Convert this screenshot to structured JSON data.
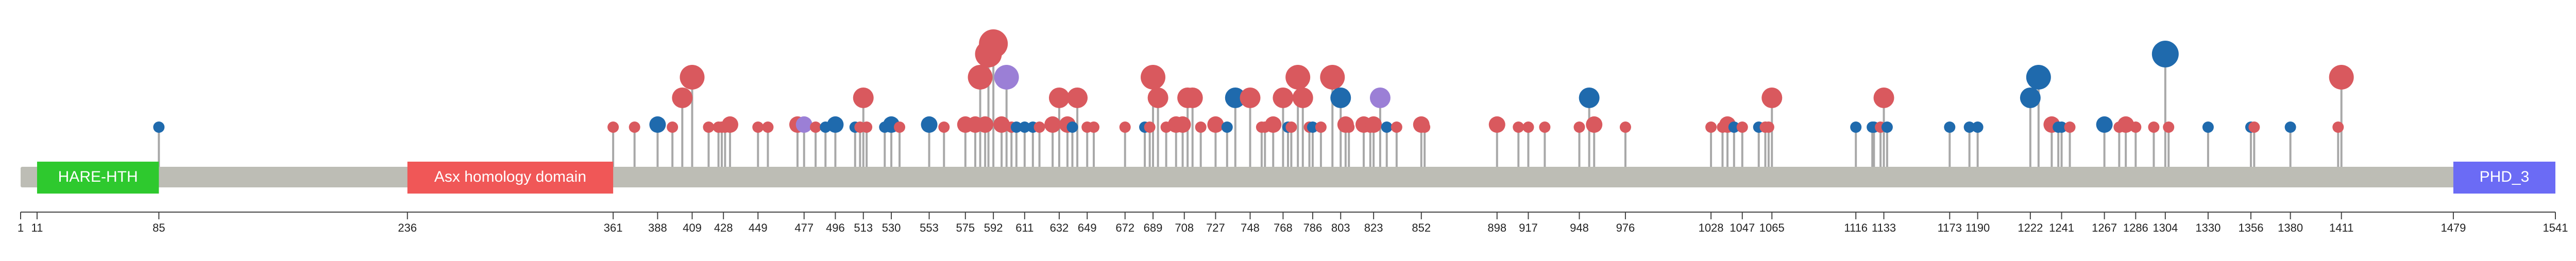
{
  "chart_data": {
    "type": "lollipop",
    "x_range": [
      1,
      1541
    ],
    "colors": {
      "backbone": "#bdbdb5",
      "stem": "#a8a8a8",
      "axis": "#444444",
      "missense": "#d9595e",
      "truncating": "#1f6aad",
      "other": "#9b7fd6"
    },
    "domains": [
      {
        "label": "HARE-HTH",
        "start": 11,
        "end": 85,
        "color": "#2ec92e"
      },
      {
        "label": "Asx homology domain",
        "start": 236,
        "end": 361,
        "color": "#f05757"
      },
      {
        "label": "PHD_3",
        "start": 1479,
        "end": 1541,
        "color": "#6b6bf5"
      }
    ],
    "ticks": [
      1,
      11,
      85,
      236,
      361,
      388,
      409,
      428,
      449,
      477,
      496,
      513,
      530,
      553,
      575,
      592,
      611,
      632,
      649,
      672,
      689,
      708,
      727,
      748,
      768,
      786,
      803,
      823,
      852,
      898,
      917,
      948,
      976,
      1028,
      1047,
      1065,
      1116,
      1133,
      1173,
      1190,
      1222,
      1241,
      1267,
      1286,
      1304,
      1330,
      1356,
      1380,
      1411,
      1479,
      1541
    ],
    "tick_labels": [
      "1",
      "11",
      "85",
      "236",
      "361",
      "388",
      "409",
      "428",
      "449",
      "477",
      "496",
      "513",
      "530",
      "553",
      "575",
      "592",
      "611",
      "632",
      "649",
      "672",
      "689",
      "708",
      "727",
      "748",
      "768",
      "786",
      "803",
      "823",
      "852",
      "898",
      "917",
      "948",
      "976",
      "1028",
      "1047",
      "1065",
      "1116",
      "1133",
      "1173",
      "1190",
      "1222",
      "1241",
      "1267",
      "1286",
      "1304",
      "1330",
      "1356",
      "1380",
      "1411",
      "1479",
      "1541"
    ],
    "lollipops": [
      {
        "pos": 85,
        "count": 1,
        "type": "truncating"
      },
      {
        "pos": 361,
        "count": 1,
        "type": "missense"
      },
      {
        "pos": 374,
        "count": 1,
        "type": "missense"
      },
      {
        "pos": 388,
        "count": 2,
        "type": "truncating"
      },
      {
        "pos": 397,
        "count": 1,
        "type": "missense"
      },
      {
        "pos": 403,
        "count": 3,
        "type": "missense"
      },
      {
        "pos": 409,
        "count": 4,
        "type": "missense"
      },
      {
        "pos": 419,
        "count": 1,
        "type": "missense"
      },
      {
        "pos": 425,
        "count": 1,
        "type": "missense"
      },
      {
        "pos": 427,
        "count": 1,
        "type": "missense"
      },
      {
        "pos": 429,
        "count": 1,
        "type": "missense"
      },
      {
        "pos": 432,
        "count": 2,
        "type": "missense"
      },
      {
        "pos": 449,
        "count": 1,
        "type": "missense"
      },
      {
        "pos": 455,
        "count": 1,
        "type": "missense"
      },
      {
        "pos": 473,
        "count": 2,
        "type": "missense"
      },
      {
        "pos": 477,
        "count": 2,
        "type": "other"
      },
      {
        "pos": 484,
        "count": 1,
        "type": "missense"
      },
      {
        "pos": 490,
        "count": 1,
        "type": "truncating"
      },
      {
        "pos": 496,
        "count": 2,
        "type": "truncating"
      },
      {
        "pos": 508,
        "count": 1,
        "type": "truncating"
      },
      {
        "pos": 511,
        "count": 1,
        "type": "missense"
      },
      {
        "pos": 513,
        "count": 3,
        "type": "missense"
      },
      {
        "pos": 515,
        "count": 1,
        "type": "missense"
      },
      {
        "pos": 526,
        "count": 1,
        "type": "truncating"
      },
      {
        "pos": 530,
        "count": 2,
        "type": "truncating"
      },
      {
        "pos": 535,
        "count": 1,
        "type": "missense"
      },
      {
        "pos": 553,
        "count": 2,
        "type": "truncating"
      },
      {
        "pos": 562,
        "count": 1,
        "type": "missense"
      },
      {
        "pos": 575,
        "count": 2,
        "type": "missense"
      },
      {
        "pos": 581,
        "count": 2,
        "type": "missense"
      },
      {
        "pos": 584,
        "count": 4,
        "type": "missense"
      },
      {
        "pos": 587,
        "count": 2,
        "type": "missense"
      },
      {
        "pos": 589,
        "count": 5,
        "type": "missense"
      },
      {
        "pos": 592,
        "count": 6,
        "type": "missense"
      },
      {
        "pos": 597,
        "count": 2,
        "type": "missense"
      },
      {
        "pos": 600,
        "count": 4,
        "type": "other"
      },
      {
        "pos": 603,
        "count": 1,
        "type": "missense"
      },
      {
        "pos": 606,
        "count": 1,
        "type": "truncating"
      },
      {
        "pos": 611,
        "count": 1,
        "type": "truncating"
      },
      {
        "pos": 616,
        "count": 1,
        "type": "truncating"
      },
      {
        "pos": 620,
        "count": 1,
        "type": "missense"
      },
      {
        "pos": 628,
        "count": 2,
        "type": "missense"
      },
      {
        "pos": 632,
        "count": 3,
        "type": "missense"
      },
      {
        "pos": 637,
        "count": 2,
        "type": "missense"
      },
      {
        "pos": 640,
        "count": 1,
        "type": "truncating"
      },
      {
        "pos": 643,
        "count": 3,
        "type": "missense"
      },
      {
        "pos": 649,
        "count": 1,
        "type": "missense"
      },
      {
        "pos": 653,
        "count": 1,
        "type": "missense"
      },
      {
        "pos": 672,
        "count": 1,
        "type": "missense"
      },
      {
        "pos": 684,
        "count": 1,
        "type": "truncating"
      },
      {
        "pos": 687,
        "count": 1,
        "type": "missense"
      },
      {
        "pos": 689,
        "count": 4,
        "type": "missense"
      },
      {
        "pos": 692,
        "count": 3,
        "type": "missense"
      },
      {
        "pos": 697,
        "count": 1,
        "type": "missense"
      },
      {
        "pos": 703,
        "count": 2,
        "type": "missense"
      },
      {
        "pos": 707,
        "count": 2,
        "type": "missense"
      },
      {
        "pos": 710,
        "count": 3,
        "type": "missense"
      },
      {
        "pos": 713,
        "count": 3,
        "type": "missense"
      },
      {
        "pos": 718,
        "count": 1,
        "type": "missense"
      },
      {
        "pos": 727,
        "count": 2,
        "type": "missense"
      },
      {
        "pos": 734,
        "count": 1,
        "type": "truncating"
      },
      {
        "pos": 739,
        "count": 3,
        "type": "truncating"
      },
      {
        "pos": 748,
        "count": 3,
        "type": "missense"
      },
      {
        "pos": 755,
        "count": 1,
        "type": "missense"
      },
      {
        "pos": 757,
        "count": 1,
        "type": "missense"
      },
      {
        "pos": 762,
        "count": 2,
        "type": "missense"
      },
      {
        "pos": 768,
        "count": 3,
        "type": "missense"
      },
      {
        "pos": 771,
        "count": 1,
        "type": "truncating"
      },
      {
        "pos": 773,
        "count": 1,
        "type": "missense"
      },
      {
        "pos": 777,
        "count": 4,
        "type": "missense"
      },
      {
        "pos": 780,
        "count": 3,
        "type": "missense"
      },
      {
        "pos": 784,
        "count": 1,
        "type": "missense"
      },
      {
        "pos": 786,
        "count": 1,
        "type": "truncating"
      },
      {
        "pos": 791,
        "count": 1,
        "type": "missense"
      },
      {
        "pos": 798,
        "count": 4,
        "type": "missense"
      },
      {
        "pos": 803,
        "count": 3,
        "type": "truncating"
      },
      {
        "pos": 806,
        "count": 2,
        "type": "missense"
      },
      {
        "pos": 808,
        "count": 1,
        "type": "missense"
      },
      {
        "pos": 817,
        "count": 2,
        "type": "missense"
      },
      {
        "pos": 821,
        "count": 1,
        "type": "missense"
      },
      {
        "pos": 823,
        "count": 2,
        "type": "missense"
      },
      {
        "pos": 827,
        "count": 3,
        "type": "other"
      },
      {
        "pos": 831,
        "count": 1,
        "type": "truncating"
      },
      {
        "pos": 837,
        "count": 1,
        "type": "missense"
      },
      {
        "pos": 852,
        "count": 2,
        "type": "missense"
      },
      {
        "pos": 854,
        "count": 1,
        "type": "missense"
      },
      {
        "pos": 898,
        "count": 2,
        "type": "missense"
      },
      {
        "pos": 911,
        "count": 1,
        "type": "missense"
      },
      {
        "pos": 917,
        "count": 1,
        "type": "missense"
      },
      {
        "pos": 927,
        "count": 1,
        "type": "missense"
      },
      {
        "pos": 948,
        "count": 1,
        "type": "missense"
      },
      {
        "pos": 954,
        "count": 3,
        "type": "truncating"
      },
      {
        "pos": 957,
        "count": 2,
        "type": "missense"
      },
      {
        "pos": 976,
        "count": 1,
        "type": "missense"
      },
      {
        "pos": 1028,
        "count": 1,
        "type": "missense"
      },
      {
        "pos": 1035,
        "count": 1,
        "type": "missense"
      },
      {
        "pos": 1038,
        "count": 2,
        "type": "missense"
      },
      {
        "pos": 1042,
        "count": 1,
        "type": "truncating"
      },
      {
        "pos": 1047,
        "count": 1,
        "type": "missense"
      },
      {
        "pos": 1057,
        "count": 1,
        "type": "truncating"
      },
      {
        "pos": 1061,
        "count": 1,
        "type": "missense"
      },
      {
        "pos": 1063,
        "count": 1,
        "type": "missense"
      },
      {
        "pos": 1065,
        "count": 3,
        "type": "missense"
      },
      {
        "pos": 1116,
        "count": 1,
        "type": "truncating"
      },
      {
        "pos": 1126,
        "count": 1,
        "type": "truncating"
      },
      {
        "pos": 1127,
        "count": 1,
        "type": "truncating"
      },
      {
        "pos": 1131,
        "count": 1,
        "type": "missense"
      },
      {
        "pos": 1133,
        "count": 3,
        "type": "missense"
      },
      {
        "pos": 1135,
        "count": 1,
        "type": "truncating"
      },
      {
        "pos": 1173,
        "count": 1,
        "type": "truncating"
      },
      {
        "pos": 1185,
        "count": 1,
        "type": "truncating"
      },
      {
        "pos": 1190,
        "count": 1,
        "type": "truncating"
      },
      {
        "pos": 1222,
        "count": 3,
        "type": "truncating"
      },
      {
        "pos": 1227,
        "count": 4,
        "type": "truncating"
      },
      {
        "pos": 1235,
        "count": 2,
        "type": "missense"
      },
      {
        "pos": 1239,
        "count": 1,
        "type": "truncating"
      },
      {
        "pos": 1241,
        "count": 1,
        "type": "truncating"
      },
      {
        "pos": 1246,
        "count": 1,
        "type": "missense"
      },
      {
        "pos": 1267,
        "count": 2,
        "type": "truncating"
      },
      {
        "pos": 1276,
        "count": 1,
        "type": "missense"
      },
      {
        "pos": 1280,
        "count": 2,
        "type": "missense"
      },
      {
        "pos": 1286,
        "count": 1,
        "type": "missense"
      },
      {
        "pos": 1297,
        "count": 1,
        "type": "missense"
      },
      {
        "pos": 1304,
        "count": 5,
        "type": "truncating"
      },
      {
        "pos": 1306,
        "count": 1,
        "type": "missense"
      },
      {
        "pos": 1330,
        "count": 1,
        "type": "truncating"
      },
      {
        "pos": 1356,
        "count": 1,
        "type": "truncating"
      },
      {
        "pos": 1358,
        "count": 1,
        "type": "missense"
      },
      {
        "pos": 1380,
        "count": 1,
        "type": "truncating"
      },
      {
        "pos": 1409,
        "count": 1,
        "type": "missense"
      },
      {
        "pos": 1411,
        "count": 4,
        "type": "missense"
      }
    ]
  }
}
